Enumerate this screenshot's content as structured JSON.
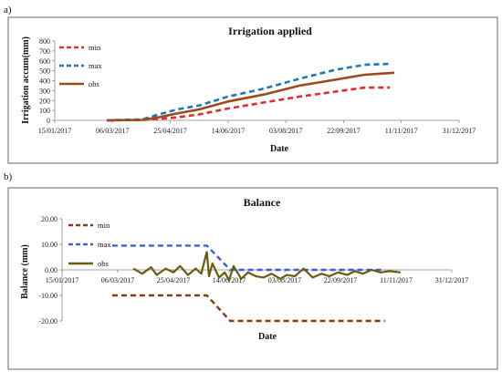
{
  "panels": {
    "a_label": "a)",
    "b_label": "b)"
  },
  "chart_data": [
    {
      "type": "line",
      "title": "Irrigation applied",
      "xlabel": "Date",
      "ylabel": "Irrigation accum(mm)",
      "x_tick_labels": [
        "15/01/2017",
        "06/03/2017",
        "25/04/2017",
        "14/06/2017",
        "03/08/2017",
        "22/09/2017",
        "11/11/2017",
        "31/12/2017"
      ],
      "y_tick_labels": [
        "0",
        "100",
        "200",
        "300",
        "400",
        "500",
        "600",
        "700",
        "800"
      ],
      "xlim": [
        "2017-01-15",
        "2017-12-31"
      ],
      "ylim": [
        0,
        800
      ],
      "grid": false,
      "legend_position": "top-left",
      "series": [
        {
          "name": "min",
          "color": "#e8282c",
          "dash": "dashed",
          "x": [
            "2017-03-01",
            "2017-04-01",
            "2017-04-15",
            "2017-05-01",
            "2017-05-20",
            "2017-06-14",
            "2017-07-15",
            "2017-08-15",
            "2017-09-15",
            "2017-10-10",
            "2017-11-01"
          ],
          "y": [
            0,
            5,
            15,
            30,
            60,
            120,
            180,
            240,
            290,
            330,
            330
          ]
        },
        {
          "name": "max",
          "color": "#1f77b4",
          "dash": "dashed",
          "x": [
            "2017-03-01",
            "2017-04-01",
            "2017-04-15",
            "2017-05-01",
            "2017-05-20",
            "2017-06-14",
            "2017-07-15",
            "2017-08-15",
            "2017-09-15",
            "2017-10-10",
            "2017-11-01"
          ],
          "y": [
            0,
            10,
            60,
            110,
            150,
            240,
            320,
            420,
            510,
            560,
            570
          ]
        },
        {
          "name": "obs",
          "color": "#9b4a1b",
          "dash": "solid",
          "x": [
            "2017-03-01",
            "2017-04-01",
            "2017-04-15",
            "2017-05-01",
            "2017-05-20",
            "2017-06-14",
            "2017-07-15",
            "2017-08-15",
            "2017-09-15",
            "2017-10-10",
            "2017-11-05"
          ],
          "y": [
            0,
            5,
            30,
            70,
            110,
            190,
            260,
            350,
            410,
            460,
            480
          ]
        }
      ]
    },
    {
      "type": "line",
      "title": "Balance",
      "xlabel": "Date",
      "ylabel": "Balance (mm)",
      "x_tick_labels": [
        "15/01/2017",
        "06/03/2017",
        "25/04/2017",
        "14/06/2017",
        "03/08/2017",
        "22/09/2017",
        "11/11/2017",
        "31/12/2017"
      ],
      "y_tick_labels": [
        "20.00",
        "10.00",
        "0.00",
        "-10.00",
        "-20.00"
      ],
      "xlim": [
        "2017-01-15",
        "2017-12-31"
      ],
      "ylim": [
        -20,
        20
      ],
      "grid": false,
      "legend_position": "top-left",
      "series": [
        {
          "name": "min",
          "color": "#8b3a0f",
          "dash": "dashed",
          "x": [
            "2017-03-01",
            "2017-05-25",
            "2017-06-15",
            "2017-11-01"
          ],
          "y": [
            -10,
            -10,
            -20,
            -20
          ]
        },
        {
          "name": "max",
          "color": "#3a5fd6",
          "dash": "dashed",
          "x": [
            "2017-03-01",
            "2017-05-25",
            "2017-06-15",
            "2017-11-01"
          ],
          "y": [
            9.5,
            9.5,
            0,
            0
          ]
        },
        {
          "name": "obs",
          "color": "#6b5a10",
          "dash": "solid",
          "x": [
            "2017-03-20",
            "2017-03-28",
            "2017-04-05",
            "2017-04-10",
            "2017-04-18",
            "2017-04-25",
            "2017-05-01",
            "2017-05-08",
            "2017-05-15",
            "2017-05-20",
            "2017-05-25",
            "2017-05-27",
            "2017-05-30",
            "2017-06-05",
            "2017-06-10",
            "2017-06-14",
            "2017-06-18",
            "2017-06-25",
            "2017-07-01",
            "2017-07-08",
            "2017-07-15",
            "2017-07-22",
            "2017-07-30",
            "2017-08-05",
            "2017-08-12",
            "2017-08-20",
            "2017-08-28",
            "2017-09-05",
            "2017-09-12",
            "2017-09-20",
            "2017-09-28",
            "2017-10-05",
            "2017-10-12",
            "2017-10-20",
            "2017-10-28",
            "2017-11-05",
            "2017-11-15"
          ],
          "y": [
            0.5,
            -1.5,
            1.0,
            -2.0,
            0.5,
            -1.0,
            1.5,
            -2.0,
            0.5,
            -1.5,
            7.0,
            -2.5,
            2.5,
            -3.0,
            -1.0,
            -4.0,
            1.5,
            -3.5,
            -1.0,
            -2.5,
            -3.0,
            -1.5,
            -3.5,
            -2.0,
            -2.5,
            0.5,
            -3.0,
            -1.5,
            -2.5,
            -1.0,
            -2.0,
            -0.5,
            -1.5,
            0.0,
            -1.0,
            -0.5,
            -1.0
          ]
        }
      ]
    }
  ]
}
